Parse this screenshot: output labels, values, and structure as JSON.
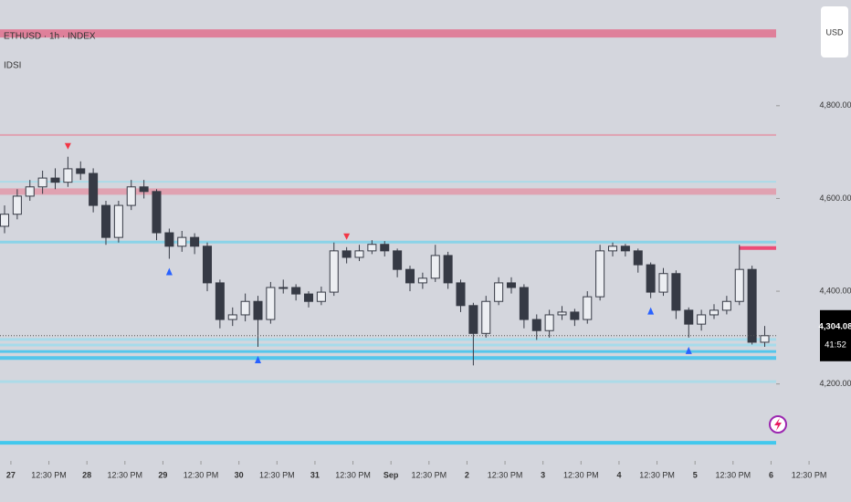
{
  "chart_data": {
    "type": "candlestick",
    "title": "ETHUSD · 1h · INDEX",
    "subtitle": "IDSI",
    "currency": "USD",
    "ylim": [
      4034,
      5028
    ],
    "yticks": [
      {
        "value": 4200,
        "label": "4,200.00"
      },
      {
        "value": 4400,
        "label": "4,400.00"
      },
      {
        "value": 4600,
        "label": "4,600.00"
      },
      {
        "value": 4800,
        "label": "4,800.00"
      }
    ],
    "xlim": [
      -0.36,
      60.9
    ],
    "xticks": [
      {
        "value": 0.5,
        "label": "27"
      },
      {
        "value": 3.5,
        "label": "12:30 PM"
      },
      {
        "value": 6.5,
        "label": "28"
      },
      {
        "value": 9.5,
        "label": "12:30 PM"
      },
      {
        "value": 12.5,
        "label": "29"
      },
      {
        "value": 15.5,
        "label": "12:30 PM"
      },
      {
        "value": 18.5,
        "label": "30"
      },
      {
        "value": 21.5,
        "label": "12:30 PM"
      },
      {
        "value": 24.5,
        "label": "31"
      },
      {
        "value": 27.5,
        "label": "12:30 PM"
      },
      {
        "value": 30.5,
        "label": "Sep"
      },
      {
        "value": 33.5,
        "label": "12:30 PM"
      },
      {
        "value": 36.5,
        "label": "2"
      },
      {
        "value": 39.5,
        "label": "12:30 PM"
      },
      {
        "value": 42.5,
        "label": "3"
      },
      {
        "value": 45.5,
        "label": "12:30 PM"
      },
      {
        "value": 48.5,
        "label": "4"
      },
      {
        "value": 51.5,
        "label": "12:30 PM"
      },
      {
        "value": 54.5,
        "label": "5"
      },
      {
        "value": 57.5,
        "label": "12:30 PM"
      },
      {
        "value": 60.5,
        "label": "6"
      },
      {
        "value": 63.5,
        "label": "12:30 PM"
      }
    ],
    "up_color": "#eceef2",
    "down_color": "#363a45",
    "ohlc": [
      [
        4540,
        4585,
        4525,
        4566
      ],
      [
        4566,
        4620,
        4555,
        4605
      ],
      [
        4605,
        4640,
        4595,
        4625
      ],
      [
        4625,
        4660,
        4610,
        4644
      ],
      [
        4644,
        4665,
        4620,
        4635
      ],
      [
        4635,
        4690,
        4625,
        4664
      ],
      [
        4664,
        4680,
        4640,
        4654
      ],
      [
        4654,
        4665,
        4570,
        4585
      ],
      [
        4585,
        4595,
        4500,
        4516
      ],
      [
        4516,
        4595,
        4505,
        4585
      ],
      [
        4585,
        4640,
        4575,
        4625
      ],
      [
        4625,
        4640,
        4600,
        4615
      ],
      [
        4615,
        4620,
        4510,
        4526
      ],
      [
        4526,
        4535,
        4470,
        4497
      ],
      [
        4497,
        4530,
        4485,
        4516
      ],
      [
        4516,
        4525,
        4480,
        4497
      ],
      [
        4497,
        4505,
        4400,
        4418
      ],
      [
        4418,
        4425,
        4320,
        4339
      ],
      [
        4339,
        4365,
        4325,
        4349
      ],
      [
        4349,
        4395,
        4335,
        4378
      ],
      [
        4378,
        4390,
        4280,
        4339
      ],
      [
        4339,
        4420,
        4330,
        4408
      ],
      [
        4408,
        4425,
        4395,
        4408
      ],
      [
        4408,
        4415,
        4380,
        4394
      ],
      [
        4394,
        4400,
        4365,
        4378
      ],
      [
        4378,
        4410,
        4370,
        4398
      ],
      [
        4398,
        4505,
        4390,
        4487
      ],
      [
        4487,
        4495,
        4460,
        4473
      ],
      [
        4473,
        4500,
        4465,
        4487
      ],
      [
        4487,
        4510,
        4480,
        4501
      ],
      [
        4501,
        4508,
        4475,
        4487
      ],
      [
        4487,
        4492,
        4430,
        4447
      ],
      [
        4447,
        4455,
        4400,
        4418
      ],
      [
        4418,
        4440,
        4405,
        4428
      ],
      [
        4428,
        4500,
        4420,
        4477
      ],
      [
        4477,
        4485,
        4405,
        4418
      ],
      [
        4418,
        4425,
        4355,
        4369
      ],
      [
        4369,
        4375,
        4240,
        4309
      ],
      [
        4309,
        4390,
        4300,
        4378
      ],
      [
        4378,
        4430,
        4370,
        4418
      ],
      [
        4418,
        4430,
        4395,
        4408
      ],
      [
        4408,
        4415,
        4320,
        4339
      ],
      [
        4339,
        4350,
        4295,
        4315
      ],
      [
        4315,
        4360,
        4300,
        4349
      ],
      [
        4349,
        4368,
        4338,
        4355
      ],
      [
        4355,
        4362,
        4325,
        4339
      ],
      [
        4339,
        4400,
        4330,
        4388
      ],
      [
        4388,
        4500,
        4380,
        4487
      ],
      [
        4487,
        4505,
        4475,
        4497
      ],
      [
        4497,
        4502,
        4475,
        4487
      ],
      [
        4487,
        4492,
        4440,
        4457
      ],
      [
        4457,
        4462,
        4385,
        4398
      ],
      [
        4398,
        4450,
        4390,
        4438
      ],
      [
        4438,
        4445,
        4340,
        4359
      ],
      [
        4359,
        4365,
        4300,
        4329
      ],
      [
        4329,
        4360,
        4315,
        4349
      ],
      [
        4349,
        4372,
        4340,
        4359
      ],
      [
        4359,
        4390,
        4350,
        4378
      ],
      [
        4378,
        4500,
        4370,
        4447
      ],
      [
        4447,
        4455,
        4285,
        4290
      ],
      [
        4290,
        4325,
        4280,
        4304.08
      ]
    ],
    "sell_signals": [
      5,
      27
    ],
    "buy_signals": [
      13,
      20,
      51,
      54
    ],
    "sell_color": "#f23645",
    "buy_color": "#2962ff",
    "levels": [
      {
        "value": 4956,
        "color": "#e1728f",
        "width": 9
      },
      {
        "value": 4737,
        "color": "#e39aaa",
        "width": 2
      },
      {
        "value": 4636,
        "color": "#a6dcea",
        "width": 2
      },
      {
        "value": 4615,
        "color": "#e39aaa",
        "width": 7
      },
      {
        "value": 4506,
        "color": "#7fd3ea",
        "width": 3
      },
      {
        "value": 4493,
        "color": "#f23666",
        "width": 4,
        "start": 58
      },
      {
        "value": 4296,
        "color": "#9fdcee",
        "width": 3
      },
      {
        "value": 4284,
        "color": "#9fdcee",
        "width": 3
      },
      {
        "value": 4270,
        "color": "#40c4ee",
        "width": 3
      },
      {
        "value": 4256,
        "color": "#40c4ee",
        "width": 4
      },
      {
        "value": 4205,
        "color": "#a6dcea",
        "width": 3
      },
      {
        "value": 4073,
        "color": "#28c6f0",
        "width": 4
      }
    ],
    "last_price": {
      "value": 4304.08,
      "label": "4,304.08"
    },
    "countdown": "41:52"
  }
}
